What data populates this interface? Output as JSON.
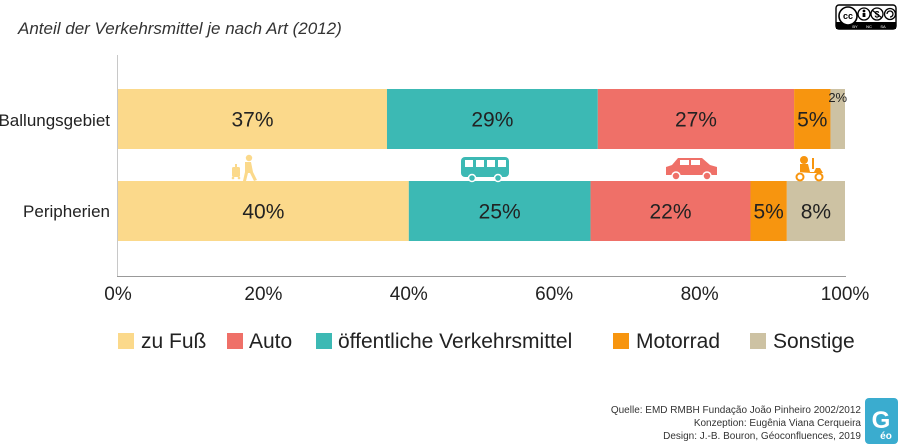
{
  "chart_data": {
    "type": "bar",
    "orientation": "horizontal",
    "stacked": true,
    "title": "Anteil der Verkehrsmittel je nach Art (2012)",
    "categories": [
      "Ballungsgebiet",
      "Peripherien"
    ],
    "series": [
      {
        "name": "zu Fuß",
        "color": "#fbd98b",
        "values": [
          37,
          40
        ],
        "labels": [
          "37%",
          "40%"
        ]
      },
      {
        "name": "öffentliche Verkehrsmittel",
        "color": "#3cb9b4",
        "values": [
          29,
          25
        ],
        "labels": [
          "29%",
          "25%"
        ]
      },
      {
        "name": "Auto",
        "color": "#ef7068",
        "values": [
          27,
          22
        ],
        "labels": [
          "27%",
          "22%"
        ]
      },
      {
        "name": "Motorrad",
        "color": "#f7950f",
        "values": [
          5,
          5
        ],
        "labels": [
          "5%",
          "5%"
        ]
      },
      {
        "name": "Sonstige",
        "color": "#cdc2a3",
        "values": [
          2,
          8
        ],
        "labels": [
          "2%",
          "8%"
        ]
      }
    ],
    "xlim": [
      0,
      100
    ],
    "xticks": [
      "0%",
      "20%",
      "40%",
      "60%",
      "80%",
      "100%"
    ],
    "legend": [
      "zu Fuß",
      "Auto",
      "öffentliche Verkehrsmittel",
      "Motorrad",
      "Sonstige"
    ],
    "legend_position": "bottom"
  },
  "icons": [
    "pedestrian-icon",
    "bus-icon",
    "car-icon",
    "scooter-icon"
  ],
  "credits": {
    "line1": "Quelle: EMD RMBH Fundação João Pinheiro 2002/2012",
    "line2": "Konzeption: Eugênia Viana Cerqueira",
    "line3": "Design: J.-B. Bouron, Géoconfluences, 2019"
  },
  "license": {
    "cc": "cc",
    "by": "BY",
    "nc": "NC",
    "sa": "SA"
  },
  "logo": {
    "text": "G",
    "subtext": "éo"
  }
}
